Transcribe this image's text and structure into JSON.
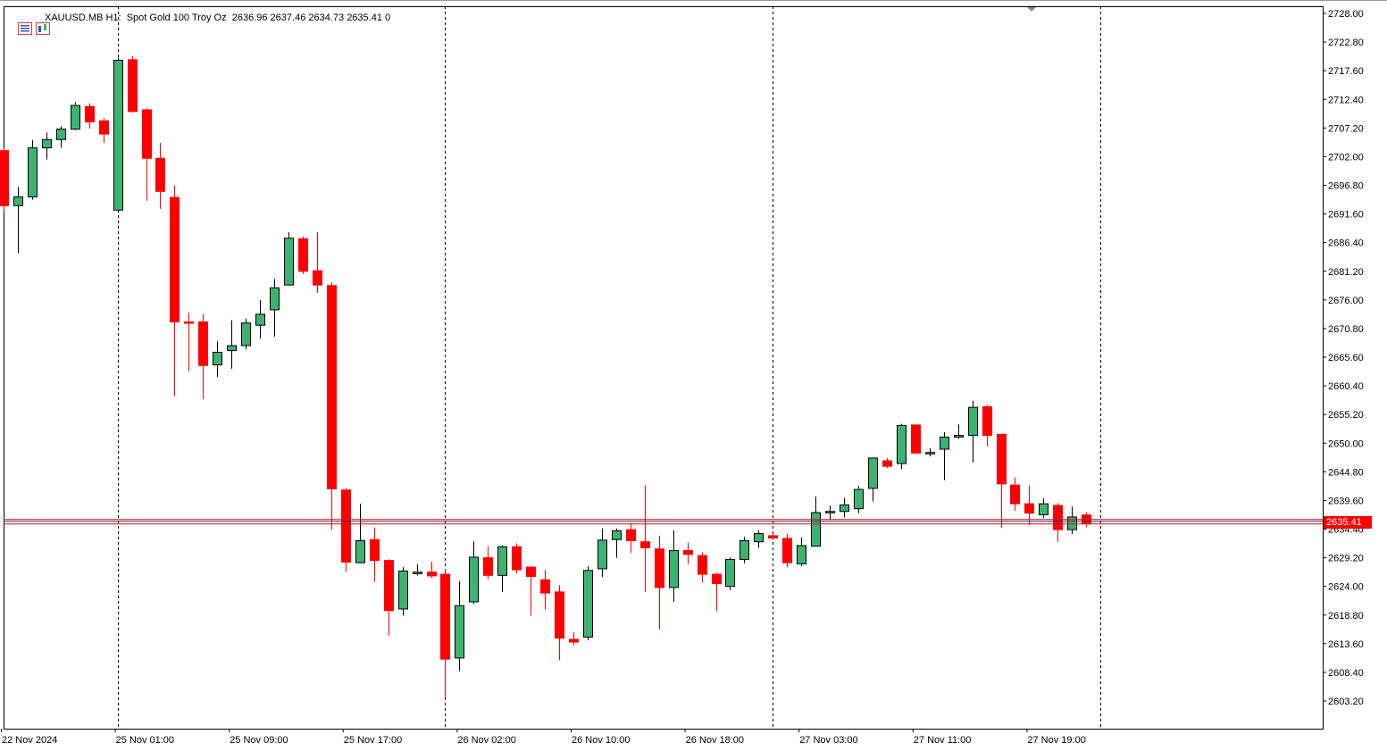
{
  "header": {
    "symbol": "XAUUSD.MB",
    "timeframe": "H1:",
    "description": "Spot Gold 100 Troy Oz",
    "ohlc": "2636.96 2637.46 2634.73 2635.41",
    "extra": "0"
  },
  "current_price": "2635.41",
  "colors": {
    "up": "#3cb371",
    "down": "#ff0000",
    "grid": "#000000",
    "bg": "#ffffff",
    "price_line": "#ff0000",
    "bid_line": "#1f3a93"
  },
  "icons": [
    "chart-menu-icon",
    "indicator-icon"
  ],
  "chart_data": {
    "type": "candlestick",
    "title": "XAUUSD.MB H1",
    "ylim": [
      2600,
      2728.6
    ],
    "y_ticks": [
      "2728.00",
      "2722.80",
      "2717.60",
      "2712.40",
      "2707.20",
      "2702.00",
      "2696.80",
      "2691.60",
      "2686.40",
      "2681.20",
      "2676.00",
      "2670.80",
      "2665.60",
      "2660.40",
      "2655.20",
      "2650.00",
      "2644.80",
      "2639.60",
      "2634.40",
      "2629.20",
      "2624.00",
      "2618.80",
      "2613.60",
      "2608.40",
      "2603.20"
    ],
    "x_ticks": [
      "22 Nov 2024",
      "25 Nov 01:00",
      "25 Nov 09:00",
      "25 Nov 17:00",
      "26 Nov 02:00",
      "26 Nov 10:00",
      "26 Nov 18:00",
      "27 Nov 03:00",
      "27 Nov 11:00",
      "27 Nov 19:00"
    ],
    "x_tick_index": [
      0,
      8,
      16,
      24,
      32,
      40,
      48,
      56,
      64,
      72
    ],
    "separators": [
      8,
      31,
      54,
      77
    ],
    "candles": [
      [
        2703.1,
        2703.5,
        2692.0,
        2693.1
      ],
      [
        2693.1,
        2696.5,
        2684.5,
        2694.7
      ],
      [
        2694.7,
        2705.0,
        2694.2,
        2703.6
      ],
      [
        2703.6,
        2706.4,
        2701.5,
        2705.1
      ],
      [
        2705.1,
        2707.5,
        2703.6,
        2707.0
      ],
      [
        2707.0,
        2711.9,
        2706.8,
        2711.3
      ],
      [
        2711.1,
        2711.7,
        2707.1,
        2708.3
      ],
      [
        2708.5,
        2709.0,
        2704.5,
        2706.1
      ],
      [
        2692.3,
        2720.0,
        2692.0,
        2719.5
      ],
      [
        2719.6,
        2720.3,
        2710.0,
        2710.2
      ],
      [
        2710.5,
        2710.8,
        2694.0,
        2701.7
      ],
      [
        2701.7,
        2704.5,
        2692.5,
        2695.7
      ],
      [
        2694.6,
        2696.8,
        2658.5,
        2672.0
      ],
      [
        2672.0,
        2673.7,
        2663.0,
        2671.8
      ],
      [
        2672.0,
        2673.5,
        2658.0,
        2664.1
      ],
      [
        2664.2,
        2668.5,
        2662.0,
        2666.5
      ],
      [
        2666.8,
        2672.3,
        2663.5,
        2667.7
      ],
      [
        2667.7,
        2672.6,
        2667.0,
        2671.8
      ],
      [
        2671.4,
        2676.0,
        2669.0,
        2673.4
      ],
      [
        2674.2,
        2679.8,
        2669.3,
        2678.2
      ],
      [
        2678.7,
        2688.3,
        2678.7,
        2687.2
      ],
      [
        2687.1,
        2687.5,
        2680.7,
        2681.2
      ],
      [
        2681.3,
        2688.3,
        2677.3,
        2678.7
      ],
      [
        2678.6,
        2679.2,
        2634.3,
        2641.7
      ],
      [
        2641.5,
        2641.8,
        2626.6,
        2628.4
      ],
      [
        2628.3,
        2639.0,
        2628.2,
        2632.3
      ],
      [
        2632.5,
        2634.7,
        2624.8,
        2628.7
      ],
      [
        2628.7,
        2628.9,
        2615.1,
        2619.6
      ],
      [
        2619.9,
        2627.5,
        2618.7,
        2626.8
      ],
      [
        2626.3,
        2628.0,
        2626.0,
        2626.6
      ],
      [
        2626.6,
        2628.5,
        2625.5,
        2625.9
      ],
      [
        2626.2,
        2627.0,
        2603.8,
        2610.8
      ],
      [
        2611.0,
        2625.0,
        2608.6,
        2620.5
      ],
      [
        2621.2,
        2632.2,
        2620.8,
        2629.3
      ],
      [
        2629.2,
        2631.3,
        2625.3,
        2626.0
      ],
      [
        2626.0,
        2631.5,
        2623.0,
        2631.2
      ],
      [
        2631.2,
        2631.8,
        2626.3,
        2627.0
      ],
      [
        2627.5,
        2627.7,
        2618.7,
        2625.8
      ],
      [
        2625.2,
        2627.0,
        2619.8,
        2622.8
      ],
      [
        2623.0,
        2624.2,
        2610.6,
        2614.6
      ],
      [
        2614.4,
        2615.7,
        2613.3,
        2613.9
      ],
      [
        2614.8,
        2627.7,
        2614.2,
        2626.9
      ],
      [
        2627.2,
        2634.5,
        2625.7,
        2632.4
      ],
      [
        2632.5,
        2634.5,
        2629.2,
        2634.1
      ],
      [
        2634.3,
        2635.5,
        2630.1,
        2632.3
      ],
      [
        2632.1,
        2642.4,
        2623.0,
        2631.0
      ],
      [
        2630.8,
        2633.2,
        2616.2,
        2623.8
      ],
      [
        2623.8,
        2634.2,
        2621.2,
        2630.5
      ],
      [
        2630.5,
        2632.0,
        2628.0,
        2629.8
      ],
      [
        2629.6,
        2630.2,
        2624.7,
        2626.2
      ],
      [
        2626.2,
        2626.5,
        2619.5,
        2624.5
      ],
      [
        2624.0,
        2629.3,
        2623.3,
        2628.9
      ],
      [
        2628.9,
        2633.0,
        2628.2,
        2632.3
      ],
      [
        2632.1,
        2634.2,
        2631.0,
        2633.6
      ],
      [
        2633.2,
        2633.5,
        2632.4,
        2632.8
      ],
      [
        2632.7,
        2633.5,
        2627.5,
        2628.3
      ],
      [
        2628.1,
        2632.9,
        2627.7,
        2631.4
      ],
      [
        2631.3,
        2640.3,
        2631.3,
        2637.4
      ],
      [
        2637.4,
        2638.7,
        2636.1,
        2637.6
      ],
      [
        2637.6,
        2640.1,
        2636.5,
        2638.8
      ],
      [
        2638.1,
        2642.2,
        2637.3,
        2641.6
      ],
      [
        2641.8,
        2647.4,
        2639.4,
        2647.3
      ],
      [
        2646.8,
        2647.3,
        2645.5,
        2645.8
      ],
      [
        2646.3,
        2653.5,
        2645.3,
        2653.2
      ],
      [
        2653.3,
        2653.4,
        2648.1,
        2648.2
      ],
      [
        2648.2,
        2649.1,
        2647.6,
        2648.3
      ],
      [
        2648.9,
        2652.0,
        2643.3,
        2651.1
      ],
      [
        2651.1,
        2653.4,
        2650.8,
        2651.4
      ],
      [
        2651.4,
        2657.7,
        2646.5,
        2656.5
      ],
      [
        2656.6,
        2656.9,
        2649.4,
        2651.4
      ],
      [
        2651.6,
        2651.7,
        2634.6,
        2642.6
      ],
      [
        2642.4,
        2643.8,
        2637.7,
        2639.0
      ],
      [
        2639.0,
        2642.3,
        2635.1,
        2637.3
      ],
      [
        2637.0,
        2640.0,
        2636.4,
        2639.0
      ],
      [
        2638.7,
        2639.1,
        2632.0,
        2634.3
      ],
      [
        2634.3,
        2638.5,
        2633.5,
        2636.6
      ],
      [
        2636.96,
        2637.46,
        2634.73,
        2635.41
      ]
    ]
  }
}
